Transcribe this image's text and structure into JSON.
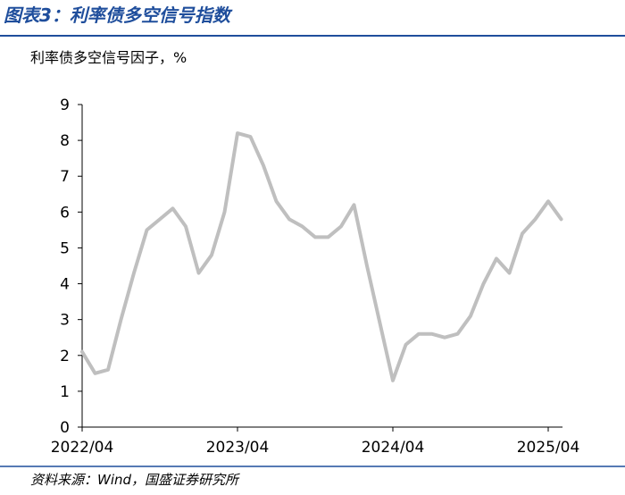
{
  "figure_title": "图表3：利率债多空信号指数",
  "source": "资料来源：Wind，国盛证券研究所",
  "chart_data": {
    "type": "line",
    "title": "利率债多空信号因子，%",
    "x": [
      "2022/04",
      "2022/05",
      "2022/06",
      "2022/07",
      "2022/08",
      "2022/09",
      "2022/10",
      "2022/11",
      "2022/12",
      "2023/01",
      "2023/02",
      "2023/03",
      "2023/04",
      "2023/05",
      "2023/06",
      "2023/07",
      "2023/08",
      "2023/09",
      "2023/10",
      "2023/11",
      "2023/12",
      "2024/01",
      "2024/02",
      "2024/03",
      "2024/04",
      "2024/05",
      "2024/06",
      "2024/07",
      "2024/08",
      "2024/09",
      "2024/10",
      "2024/11",
      "2024/12",
      "2025/01",
      "2025/02",
      "2025/03",
      "2025/04",
      "2025/05"
    ],
    "series": [
      {
        "color": "#bfbfbf",
        "values": [
          2.1,
          1.5,
          1.6,
          3.0,
          4.3,
          5.5,
          5.8,
          6.1,
          5.6,
          4.3,
          4.8,
          6.0,
          8.2,
          8.1,
          7.3,
          6.3,
          5.8,
          5.6,
          5.3,
          5.3,
          5.6,
          6.2,
          4.5,
          2.9,
          1.3,
          2.3,
          2.6,
          2.6,
          2.5,
          2.6,
          3.1,
          4.0,
          4.7,
          4.3,
          5.4,
          5.8,
          6.3,
          5.8
        ]
      }
    ],
    "xticks": [
      "2022/04",
      "2023/04",
      "2024/04",
      "2025/04"
    ],
    "ylim": [
      0,
      9
    ],
    "yticks": [
      0,
      1,
      2,
      3,
      4,
      5,
      6,
      7,
      8,
      9
    ]
  }
}
